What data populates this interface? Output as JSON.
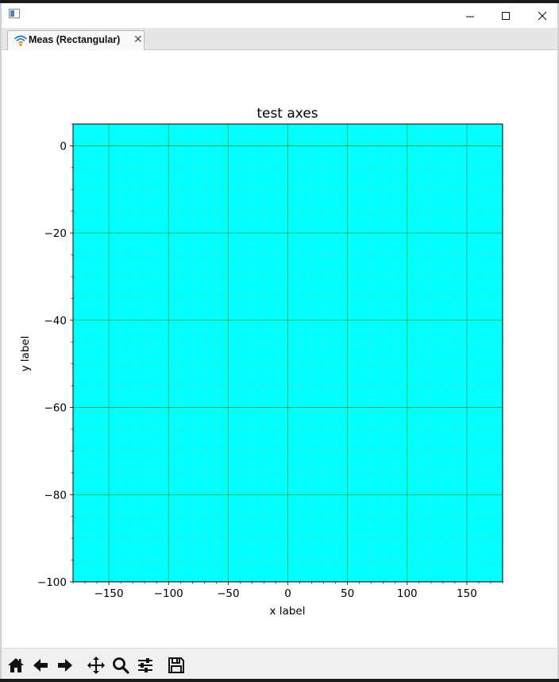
{
  "window": {
    "minimize_glyph": "—",
    "maximize_glyph": "☐",
    "close_glyph": "✕"
  },
  "tab": {
    "label": "Meas (Rectangular)",
    "close_glyph": "✕",
    "icon": "wifi-signal-icon"
  },
  "toolbar": {
    "buttons": [
      {
        "name": "home-icon"
      },
      {
        "name": "back-arrow-icon"
      },
      {
        "name": "forward-arrow-icon"
      },
      {
        "name": "pan-move-icon"
      },
      {
        "name": "zoom-magnifier-icon"
      },
      {
        "name": "subplot-config-icon"
      },
      {
        "name": "save-disk-icon"
      }
    ]
  },
  "colors": {
    "plot_background": "#00ffff",
    "major_grid": "#2aa84a",
    "minor_grid": "#5fd0c8"
  },
  "chart_data": {
    "type": "line",
    "title": "test axes",
    "xlabel": "x label",
    "ylabel": "y label",
    "xlim": [
      -180,
      180
    ],
    "ylim": [
      -100,
      5
    ],
    "x_ticks": [
      -150,
      -100,
      -50,
      0,
      50,
      100,
      150
    ],
    "x_tick_labels": [
      "−150",
      "−100",
      "−50",
      "0",
      "50",
      "100",
      "150"
    ],
    "y_ticks": [
      0,
      -20,
      -40,
      -60,
      -80,
      -100
    ],
    "y_tick_labels": [
      "0",
      "−20",
      "−40",
      "−60",
      "−80",
      "−100"
    ],
    "x_minor_step": 10,
    "y_minor_step": 5,
    "grid": true,
    "series": []
  }
}
